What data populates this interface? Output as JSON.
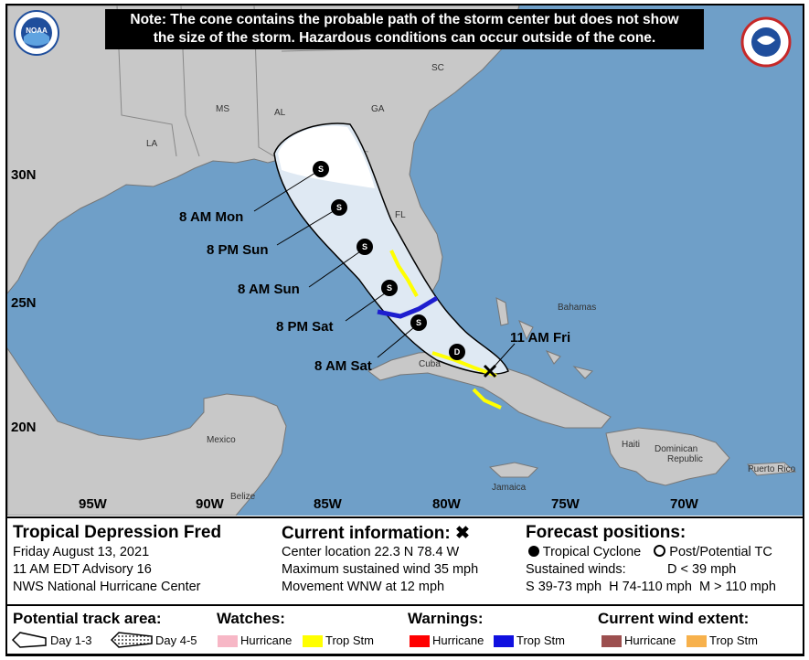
{
  "note": {
    "line1": "Note: The cone contains the probable path of the storm center but does not show",
    "line2": "the size of the storm. Hazardous conditions can occur outside of the cone."
  },
  "map": {
    "colors": {
      "ocean": "#6f9fc8",
      "land": "#c8c8c8",
      "cone_day13": "#ffffff",
      "cone_inner": "#dfe9f3",
      "trop_storm_watch": "#ffff00",
      "trop_storm_warning": "#1e1ecf",
      "border": "#555555"
    },
    "lat_labels": [
      "30N",
      "25N",
      "20N"
    ],
    "lon_labels": [
      "95W",
      "90W",
      "85W",
      "80W",
      "75W",
      "70W"
    ],
    "state_labels": [
      "SC",
      "MS",
      "AL",
      "GA",
      "LA",
      "FL"
    ],
    "country_labels": [
      "Bahamas",
      "Cuba",
      "Mexico",
      "Belize",
      "Jamaica",
      "Haiti",
      "Dominican",
      "Republic",
      "Puerto Rico"
    ],
    "forecast_points": [
      {
        "label": "11 AM Fri",
        "marker": "x"
      },
      {
        "label": "",
        "marker": "D"
      },
      {
        "label": "8 AM Sat",
        "marker": "S"
      },
      {
        "label": "8 PM Sat",
        "marker": "S"
      },
      {
        "label": "8 AM Sun",
        "marker": "S"
      },
      {
        "label": "8 PM Sun",
        "marker": "S"
      },
      {
        "label": "8 AM Mon",
        "marker": "S"
      }
    ],
    "logos": {
      "left": "NOAA",
      "right": "NATIONAL WEATHER SERVICE"
    }
  },
  "info": {
    "storm_name": "Tropical Depression Fred",
    "date": "Friday August 13, 2021",
    "advisory": "11 AM EDT Advisory 16",
    "center": "NWS National Hurricane Center",
    "current_title": "Current information:",
    "current_icon": "x-icon",
    "location": "Center location 22.3 N 78.4 W",
    "max_wind": "Maximum sustained wind 35 mph",
    "movement": "Movement WNW at 12 mph",
    "forecast_title": "Forecast positions:",
    "tropical_cyclone": "Tropical Cyclone",
    "post_tc": "Post/Potential TC",
    "sustained_winds": "Sustained winds:",
    "d_wind": "D < 39 mph",
    "smh": "S 39-73 mph  H 74-110 mph  M > 110 mph"
  },
  "legend": {
    "track_title": "Potential track area:",
    "day13": "Day 1-3",
    "day45": "Day 4-5",
    "watches_title": "Watches:",
    "warnings_title": "Warnings:",
    "wind_title": "Current wind extent:",
    "hurricane": "Hurricane",
    "trop_stm": "Trop Stm",
    "colors": {
      "watch_hurricane": "#f7b7c6",
      "watch_trop": "#ffff00",
      "warn_hurricane": "#ff0000",
      "warn_trop": "#1010e0",
      "wind_hurricane": "#9c4f4f",
      "wind_trop": "#f7b14c"
    }
  }
}
